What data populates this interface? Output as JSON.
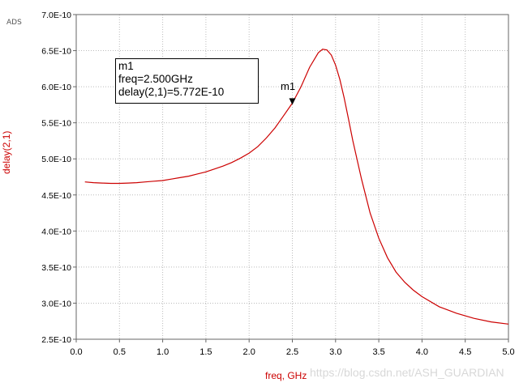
{
  "corner_label": "ADS",
  "watermark": "https://blog.csdn.net/ASH_GUARDIAN",
  "marker": {
    "name": "m1",
    "freq_text": "freq=2.500GHz",
    "value_text": "delay(2,1)=5.772E-10"
  },
  "chart_data": {
    "type": "line",
    "title": "",
    "xlabel": "freq, GHz",
    "ylabel": "delay(2,1)",
    "xlim": [
      0.0,
      5.0
    ],
    "ylim": [
      2.5e-10,
      7e-10
    ],
    "grid": true,
    "x_ticks": [
      "0.0",
      "0.5",
      "1.0",
      "1.5",
      "2.0",
      "2.5",
      "3.0",
      "3.5",
      "4.0",
      "4.5",
      "5.0"
    ],
    "y_ticks": [
      "2.5E-10",
      "3.0E-10",
      "3.5E-10",
      "4.0E-10",
      "4.5E-10",
      "5.0E-10",
      "5.5E-10",
      "6.0E-10",
      "6.5E-10",
      "7.0E-10"
    ],
    "series_color": "#cc0000",
    "series": [
      {
        "x": [
          0.1,
          0.2,
          0.3,
          0.4,
          0.5,
          0.6,
          0.7,
          0.8,
          0.9,
          1.0,
          1.1,
          1.2,
          1.3,
          1.4,
          1.5,
          1.6,
          1.7,
          1.8,
          1.9,
          2.0,
          2.1,
          2.2,
          2.3,
          2.4,
          2.5,
          2.6,
          2.7,
          2.8,
          2.85,
          2.9,
          2.95,
          3.0,
          3.05,
          3.1,
          3.15,
          3.2,
          3.3,
          3.4,
          3.5,
          3.6,
          3.7,
          3.8,
          3.9,
          4.0,
          4.2,
          4.4,
          4.6,
          4.8,
          5.0
        ],
        "values": [
          4.68e-10,
          4.67e-10,
          4.665e-10,
          4.66e-10,
          4.66e-10,
          4.665e-10,
          4.67e-10,
          4.68e-10,
          4.69e-10,
          4.7e-10,
          4.72e-10,
          4.74e-10,
          4.76e-10,
          4.79e-10,
          4.82e-10,
          4.86e-10,
          4.9e-10,
          4.95e-10,
          5.01e-10,
          5.08e-10,
          5.17e-10,
          5.29e-10,
          5.43e-10,
          5.6e-10,
          5.772e-10,
          6e-10,
          6.27e-10,
          6.47e-10,
          6.52e-10,
          6.51e-10,
          6.44e-10,
          6.3e-10,
          6.1e-10,
          5.84e-10,
          5.55e-10,
          5.25e-10,
          4.72e-10,
          4.25e-10,
          3.9e-10,
          3.63e-10,
          3.43e-10,
          3.29e-10,
          3.18e-10,
          3.09e-10,
          2.95e-10,
          2.86e-10,
          2.79e-10,
          2.74e-10,
          2.71e-10
        ]
      }
    ],
    "marker": {
      "x": 2.5,
      "y": 5.772e-10
    }
  }
}
